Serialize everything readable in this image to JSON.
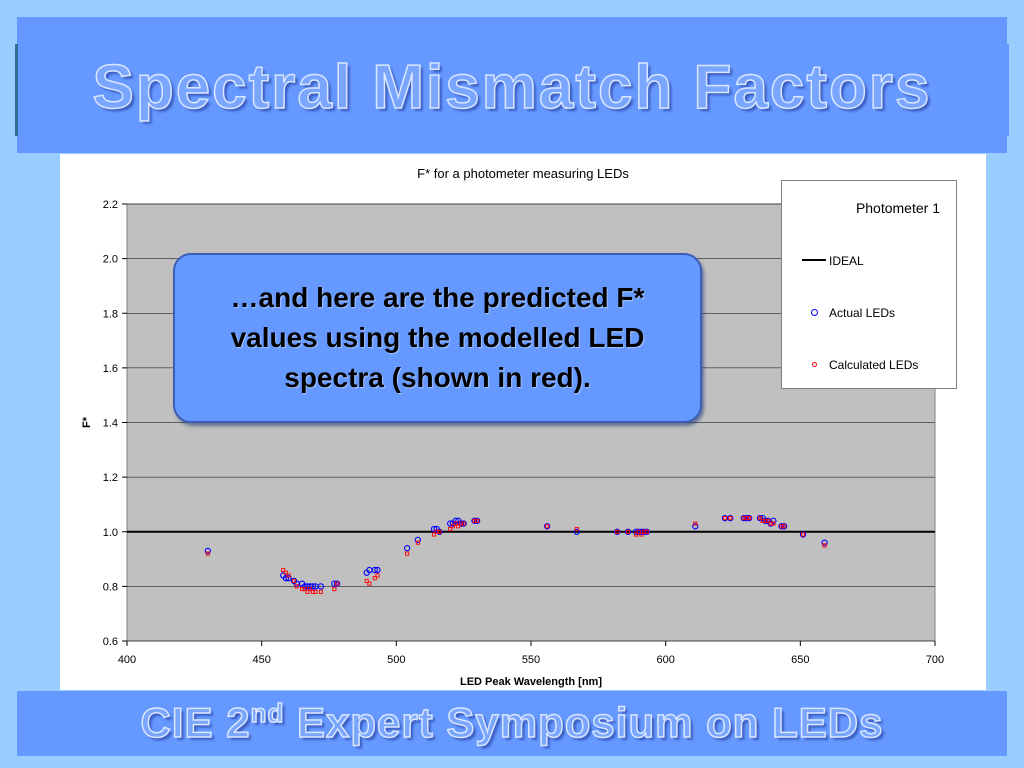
{
  "slide": {
    "title": "Spectral Mismatch Factors",
    "footer_main": "CIE 2",
    "footer_sup": "nd",
    "footer_rest": " Expert Symposium on LEDs"
  },
  "callout": {
    "text": "…and here are the predicted F* values using the modelled LED spectra (shown in red)."
  },
  "colors": {
    "band": "#6699ff",
    "actual": "#0000ff",
    "calculated": "#ff0000",
    "plot_bg": "#c0c0c0"
  },
  "chart_data": {
    "type": "scatter",
    "title": "F* for a photometer measuring LEDs",
    "xlabel": "LED Peak Wavelength [nm]",
    "ylabel": "F*",
    "xlim": [
      400,
      700
    ],
    "ylim": [
      0.6,
      2.2
    ],
    "xticks": [
      "400",
      "450",
      "500",
      "550",
      "600",
      "650",
      "700"
    ],
    "yticks": [
      "0.6",
      "0.8",
      "1.0",
      "1.2",
      "1.4",
      "1.6",
      "1.8",
      "2.0",
      "2.2"
    ],
    "grid": "horizontal",
    "legend_position": "right",
    "legend_title": "Photometer 1",
    "series": [
      {
        "name": "IDEAL",
        "kind": "line",
        "x": [
          400,
          700
        ],
        "y": [
          1.0,
          1.0
        ]
      },
      {
        "name": "Actual LEDs",
        "kind": "marker",
        "x": [
          430,
          458,
          459,
          460,
          462,
          463,
          465,
          466,
          467,
          468,
          469,
          470,
          472,
          477,
          478,
          489,
          490,
          492,
          493,
          504,
          508,
          514,
          515,
          516,
          520,
          521,
          522,
          523,
          524,
          525,
          529,
          530,
          556,
          567,
          582,
          586,
          589,
          590,
          591,
          592,
          593,
          611,
          622,
          624,
          629,
          630,
          631,
          635,
          636,
          637,
          638,
          639,
          640,
          643,
          644,
          651,
          659
        ],
        "y": [
          0.93,
          0.84,
          0.83,
          0.83,
          0.82,
          0.81,
          0.81,
          0.8,
          0.8,
          0.8,
          0.8,
          0.8,
          0.8,
          0.81,
          0.81,
          0.85,
          0.86,
          0.86,
          0.86,
          0.94,
          0.97,
          1.01,
          1.01,
          1.0,
          1.03,
          1.03,
          1.04,
          1.04,
          1.03,
          1.03,
          1.04,
          1.04,
          1.02,
          1.0,
          1.0,
          1.0,
          1.0,
          1.0,
          1.0,
          1.0,
          1.0,
          1.02,
          1.05,
          1.05,
          1.05,
          1.05,
          1.05,
          1.05,
          1.05,
          1.04,
          1.04,
          1.03,
          1.04,
          1.02,
          1.02,
          0.99,
          0.96
        ]
      },
      {
        "name": "Calculated LEDs",
        "kind": "marker",
        "x": [
          430,
          458,
          459,
          460,
          462,
          463,
          465,
          466,
          467,
          468,
          469,
          470,
          472,
          477,
          478,
          489,
          490,
          492,
          493,
          504,
          508,
          514,
          515,
          516,
          520,
          521,
          522,
          523,
          524,
          525,
          529,
          530,
          556,
          567,
          582,
          586,
          589,
          590,
          591,
          592,
          593,
          611,
          622,
          624,
          629,
          630,
          631,
          635,
          636,
          637,
          638,
          639,
          640,
          643,
          644,
          651,
          659
        ],
        "y": [
          0.92,
          0.86,
          0.85,
          0.84,
          0.82,
          0.8,
          0.79,
          0.79,
          0.78,
          0.79,
          0.78,
          0.78,
          0.78,
          0.79,
          0.81,
          0.82,
          0.81,
          0.83,
          0.84,
          0.92,
          0.96,
          0.99,
          1.0,
          1.0,
          1.01,
          1.02,
          1.03,
          1.02,
          1.03,
          1.03,
          1.04,
          1.04,
          1.02,
          1.01,
          1.0,
          1.0,
          0.99,
          1.0,
          0.99,
          1.0,
          1.0,
          1.03,
          1.05,
          1.05,
          1.05,
          1.05,
          1.05,
          1.05,
          1.04,
          1.04,
          1.04,
          1.03,
          1.03,
          1.02,
          1.02,
          0.99,
          0.95
        ]
      }
    ]
  }
}
